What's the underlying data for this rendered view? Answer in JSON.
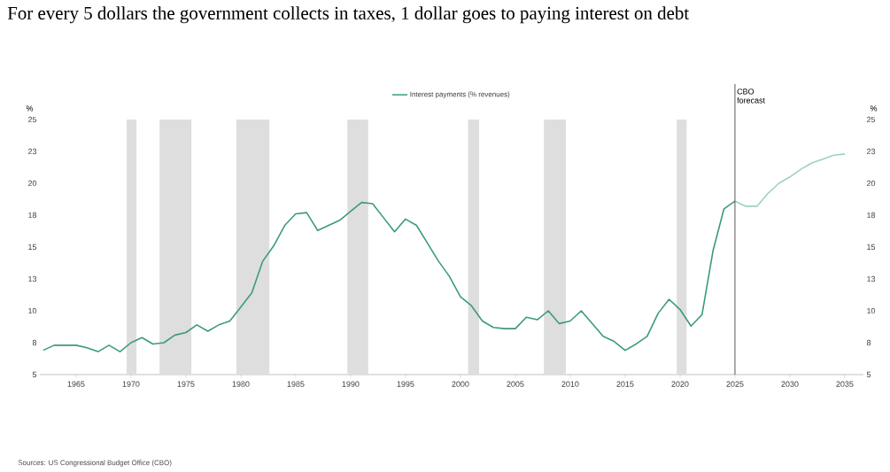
{
  "chart_data": {
    "type": "line",
    "title": "For every 5 dollars the government collects in taxes, 1 dollar goes to paying interest on debt",
    "ylabel": "%",
    "y2label": "%",
    "annotations": [
      "Sources: US Congressional Budget Office (CBO)"
    ],
    "series": [
      {
        "name": "Interest payments (% revenues)",
        "color": "#3c9a7c",
        "x": [
          1962,
          1963,
          1964,
          1965,
          1966,
          1967,
          1968,
          1969,
          1970,
          1971,
          1972,
          1973,
          1974,
          1975,
          1976,
          1977,
          1978,
          1979,
          1980,
          1981,
          1982,
          1983,
          1984,
          1985,
          1986,
          1987,
          1988,
          1989,
          1990,
          1991,
          1992,
          1993,
          1994,
          1995,
          1996,
          1997,
          1998,
          1999,
          2000,
          2001,
          2002,
          2003,
          2004,
          2005,
          2006,
          2007,
          2008,
          2009,
          2010,
          2011,
          2012,
          2013,
          2014,
          2015,
          2016,
          2017,
          2018,
          2019,
          2020,
          2021,
          2022,
          2023,
          2024,
          2025
        ],
        "values": [
          6.9,
          7.3,
          7.3,
          7.3,
          7.1,
          6.8,
          7.3,
          6.8,
          7.5,
          7.9,
          7.4,
          7.5,
          8.1,
          8.3,
          8.9,
          8.4,
          8.9,
          9.2,
          10.3,
          11.4,
          13.9,
          15.1,
          16.7,
          17.6,
          17.7,
          16.3,
          16.7,
          17.1,
          17.8,
          18.5,
          18.4,
          17.3,
          16.2,
          17.2,
          16.7,
          15.3,
          13.9,
          12.7,
          11.1,
          10.4,
          9.2,
          8.7,
          8.6,
          8.6,
          9.5,
          9.3,
          10.0,
          9.0,
          9.2,
          10.0,
          9.0,
          8.0,
          7.6,
          6.9,
          7.4,
          8.0,
          9.8,
          10.9,
          10.1,
          8.8,
          9.7,
          14.7,
          18.0,
          18.6
        ]
      },
      {
        "color": "#9bd3bf",
        "x": [
          2025,
          2026,
          2027,
          2028,
          2029,
          2030,
          2031,
          2032,
          2033,
          2034,
          2035
        ],
        "values": [
          18.6,
          18.2,
          18.2,
          19.2,
          20.0,
          20.5,
          21.1,
          21.6,
          21.9,
          22.2,
          22.3
        ]
      }
    ],
    "xlim": [
      1961.7,
      2036.7
    ],
    "xticks": [
      1965,
      1970,
      1975,
      1980,
      1985,
      1990,
      1995,
      2000,
      2005,
      2010,
      2015,
      2020,
      2025,
      2030,
      2035
    ],
    "ylim": [
      5,
      25
    ],
    "yticks": [
      5,
      {
        "value": 7.5,
        "label": "8"
      },
      10,
      {
        "value": 12.5,
        "label": "13"
      },
      15,
      {
        "value": 17.5,
        "label": "18"
      },
      20,
      {
        "value": 22.5,
        "label": "23"
      },
      25
    ],
    "y2lim": [
      5,
      25
    ],
    "y2ticks": [
      5,
      {
        "value": 7.5,
        "label": "8"
      },
      10,
      {
        "value": 12.5,
        "label": "13"
      },
      15,
      {
        "value": 17.5,
        "label": "18"
      },
      20,
      {
        "value": 22.5,
        "label": "23"
      },
      25
    ],
    "bands": [
      {
        "axis": "x",
        "from": 1969.6,
        "to": 1970.5,
        "color": "#dedede"
      },
      {
        "axis": "x",
        "from": 1972.6,
        "to": 1975.5,
        "color": "#dedede"
      },
      {
        "axis": "x",
        "from": 1979.6,
        "to": 1982.6,
        "color": "#dedede"
      },
      {
        "axis": "x",
        "from": 1989.7,
        "to": 1991.6,
        "color": "#dedede"
      },
      {
        "axis": "x",
        "from": 2000.7,
        "to": 2001.7,
        "color": "#dedede"
      },
      {
        "axis": "x",
        "from": 2007.6,
        "to": 2009.6,
        "color": "#dedede"
      },
      {
        "axis": "x",
        "from": 2019.7,
        "to": 2020.6,
        "color": "#dedede"
      }
    ],
    "ref_lines": [
      {
        "axis": "x",
        "value": 2025,
        "label": "CBO forecast",
        "color": "#555555"
      }
    ],
    "legend": "top"
  }
}
